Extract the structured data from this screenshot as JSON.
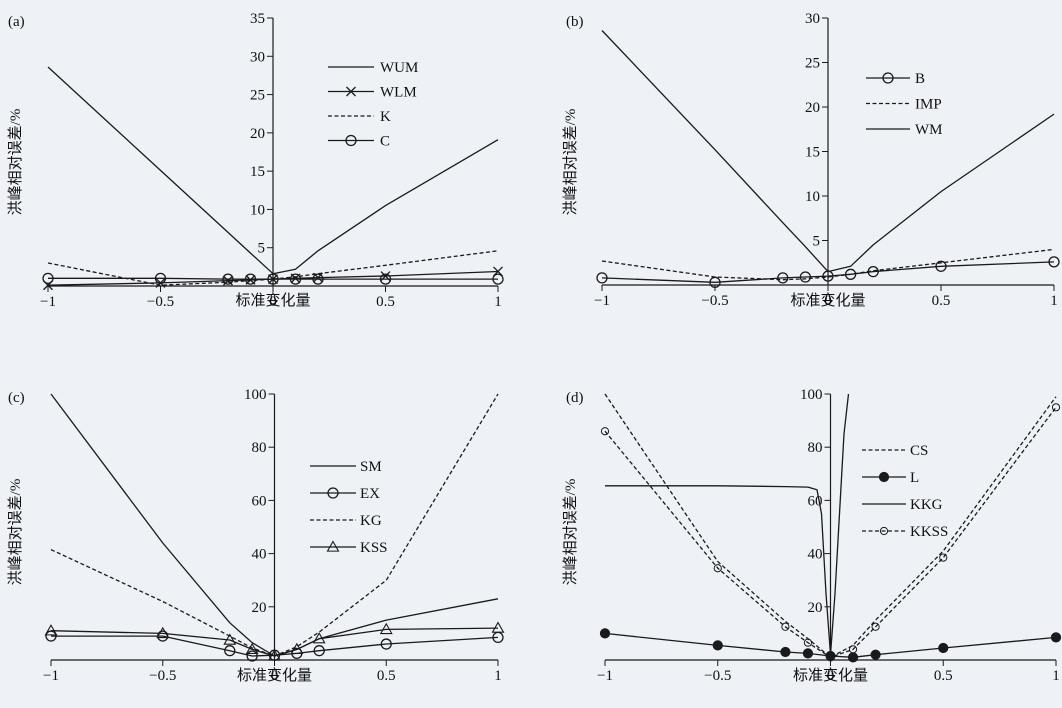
{
  "figure": {
    "background": "#eef1f5",
    "line_color": "#1a1a1a"
  },
  "chart_data": [
    {
      "panel_label": "(a)",
      "type": "line",
      "xlabel": "标准变化量",
      "ylabel": "洪峰相对误差/%",
      "xlim": [
        -1,
        1
      ],
      "ylim": [
        0,
        35
      ],
      "xticks": [
        -1,
        -0.5,
        0,
        0.5,
        1
      ],
      "xtick_labels": [
        "−1",
        "−0.5",
        "0",
        "0.5",
        "1"
      ],
      "yticks": [
        5,
        10,
        15,
        20,
        25,
        30,
        35
      ],
      "ytick_labels": [
        "5",
        "10",
        "15",
        "20",
        "25",
        "30",
        "35"
      ],
      "legend_position": "upper-right",
      "series": [
        {
          "name": "WUM",
          "style": "solid",
          "marker": "none",
          "x": [
            -1,
            -0.5,
            -0.2,
            -0.1,
            0,
            0.1,
            0.2,
            0.5,
            1
          ],
          "y": [
            28.6,
            15.1,
            7.0,
            4.3,
            1.6,
            2.2,
            4.6,
            10.5,
            19.1
          ]
        },
        {
          "name": "WLM",
          "style": "solid",
          "marker": "x",
          "x": [
            -1,
            -0.5,
            -0.2,
            -0.1,
            0,
            0.1,
            0.2,
            0.5,
            1
          ],
          "y": [
            0.1,
            0.4,
            0.7,
            0.8,
            0.9,
            1.0,
            1.1,
            1.3,
            1.9
          ]
        },
        {
          "name": "K",
          "style": "dashed",
          "marker": "none",
          "x": [
            -1,
            -0.5,
            -0.2,
            -0.1,
            0,
            0.1,
            0.2,
            0.5,
            1
          ],
          "y": [
            3.0,
            0.1,
            0.5,
            0.7,
            0.9,
            1.2,
            1.6,
            2.7,
            4.6
          ]
        },
        {
          "name": "C",
          "style": "solid",
          "marker": "circle",
          "x": [
            -1,
            -0.5,
            -0.2,
            -0.1,
            0,
            0.1,
            0.2,
            0.5,
            1
          ],
          "y": [
            1.0,
            1.0,
            0.9,
            0.9,
            0.9,
            0.9,
            0.9,
            0.9,
            0.9
          ]
        }
      ]
    },
    {
      "panel_label": "(b)",
      "type": "line",
      "xlabel": "标准变化量",
      "ylabel": "洪峰相对误差/%",
      "xlim": [
        -1,
        1
      ],
      "ylim": [
        0,
        30
      ],
      "xticks": [
        -1,
        -0.5,
        0,
        0.5,
        1
      ],
      "xtick_labels": [
        "−1",
        "−0.5",
        "0",
        "0.5",
        "1"
      ],
      "yticks": [
        5,
        10,
        15,
        20,
        25,
        30
      ],
      "ytick_labels": [
        "5",
        "10",
        "15",
        "20",
        "25",
        "30"
      ],
      "legend_position": "upper-right",
      "series": [
        {
          "name": "B",
          "style": "solid",
          "marker": "circle",
          "x": [
            -1,
            -0.5,
            -0.2,
            -0.1,
            0,
            0.1,
            0.2,
            0.5,
            1
          ],
          "y": [
            0.8,
            0.3,
            0.8,
            0.9,
            1.0,
            1.2,
            1.5,
            2.1,
            2.6
          ]
        },
        {
          "name": "IMP",
          "style": "dashed",
          "marker": "none",
          "x": [
            -1,
            -0.5,
            -0.2,
            -0.1,
            0,
            0.1,
            0.2,
            0.5,
            1
          ],
          "y": [
            2.7,
            0.9,
            0.6,
            0.7,
            0.9,
            1.2,
            1.6,
            2.5,
            4.0
          ]
        },
        {
          "name": "WM",
          "style": "solid",
          "marker": "none",
          "x": [
            -1,
            -0.5,
            -0.2,
            -0.1,
            0,
            0.1,
            0.2,
            0.5,
            1
          ],
          "y": [
            28.6,
            15.2,
            7.0,
            4.3,
            1.5,
            2.1,
            4.5,
            10.5,
            19.2
          ]
        }
      ]
    },
    {
      "panel_label": "(c)",
      "type": "line",
      "xlabel": "标准变化量",
      "ylabel": "洪峰相对误差/%",
      "xlim": [
        -1,
        1
      ],
      "ylim": [
        0,
        100
      ],
      "xticks": [
        -1,
        -0.5,
        0,
        0.5,
        1
      ],
      "xtick_labels": [
        "−1",
        "−0.5",
        "0",
        "0.5",
        "1"
      ],
      "yticks": [
        20,
        40,
        60,
        80,
        100
      ],
      "ytick_labels": [
        "20",
        "40",
        "60",
        "80",
        "100"
      ],
      "legend_position": "right",
      "series": [
        {
          "name": "SM",
          "style": "solid",
          "marker": "none",
          "x": [
            -1,
            -0.5,
            -0.2,
            -0.1,
            0,
            0.1,
            0.2,
            0.5,
            1
          ],
          "y": [
            100,
            44.0,
            14.0,
            6.5,
            1.5,
            4.0,
            8.0,
            15.0,
            23.0
          ]
        },
        {
          "name": "EX",
          "style": "solid",
          "marker": "circle",
          "x": [
            -1,
            -0.5,
            -0.2,
            -0.1,
            0,
            0.1,
            0.2,
            0.5,
            1
          ],
          "y": [
            9.0,
            9.0,
            3.5,
            1.5,
            1.8,
            2.5,
            3.5,
            6.0,
            8.5
          ]
        },
        {
          "name": "KG",
          "style": "dashed",
          "marker": "none",
          "x": [
            -1,
            -0.5,
            -0.2,
            -0.1,
            0,
            0.1,
            0.2,
            0.5,
            1
          ],
          "y": [
            41.5,
            22.0,
            9.0,
            4.5,
            1.5,
            5.0,
            10.5,
            30.0,
            100
          ]
        },
        {
          "name": "KSS",
          "style": "solid",
          "marker": "triangle",
          "x": [
            -1,
            -0.5,
            -0.2,
            -0.1,
            0,
            0.1,
            0.2,
            0.5,
            1
          ],
          "y": [
            11.0,
            10.0,
            7.5,
            4.0,
            1.5,
            4.0,
            8.0,
            11.5,
            12.0
          ]
        }
      ]
    },
    {
      "panel_label": "(d)",
      "type": "line",
      "xlabel": "标准变化量",
      "ylabel": "洪峰相对误差/%",
      "xlim": [
        -1,
        1
      ],
      "ylim": [
        0,
        100
      ],
      "xticks": [
        -1,
        -0.5,
        0,
        0.5,
        1
      ],
      "xtick_labels": [
        "−1",
        "−0.5",
        "0",
        "0.5",
        "1"
      ],
      "yticks": [
        20,
        40,
        60,
        80,
        100
      ],
      "ytick_labels": [
        "20",
        "40",
        "60",
        "80",
        "100"
      ],
      "legend_position": "right",
      "series": [
        {
          "name": "CS",
          "style": "dashed",
          "marker": "none",
          "x": [
            -1,
            -0.5,
            -0.2,
            -0.1,
            0,
            0.1,
            0.2,
            0.5,
            1
          ],
          "y": [
            100,
            37.0,
            14.5,
            8.0,
            1.0,
            5.5,
            15.0,
            41.0,
            99.0
          ]
        },
        {
          "name": "L",
          "style": "solid",
          "marker": "filled-circle",
          "x": [
            -1,
            -0.5,
            -0.2,
            -0.1,
            0,
            0.1,
            0.2,
            0.5,
            1
          ],
          "y": [
            10.0,
            5.5,
            3.0,
            2.5,
            1.5,
            1.0,
            2.0,
            4.5,
            8.5
          ]
        },
        {
          "name": "KKG",
          "style": "solid",
          "marker": "none",
          "x": [
            -1,
            -0.5,
            -0.2,
            -0.1,
            -0.06,
            -0.04,
            -0.02,
            0,
            0.02,
            0.04,
            0.06,
            0.08
          ],
          "y": [
            65.5,
            65.5,
            65.2,
            65.0,
            64.0,
            55.0,
            25.0,
            2.0,
            25.0,
            55.0,
            85.0,
            100
          ]
        },
        {
          "name": "KKSS",
          "style": "dashed",
          "marker": "open-dot",
          "x": [
            -1,
            -0.5,
            -0.2,
            -0.1,
            0,
            0.1,
            0.2,
            0.5,
            1
          ],
          "y": [
            86.0,
            34.5,
            12.5,
            6.5,
            1.0,
            4.0,
            12.5,
            38.5,
            95.0
          ]
        }
      ]
    }
  ]
}
